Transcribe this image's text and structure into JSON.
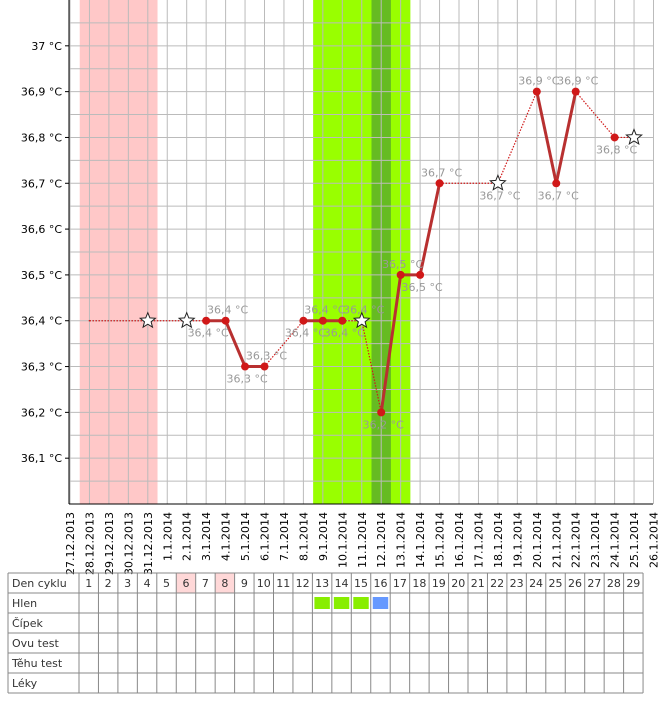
{
  "chart_data": {
    "type": "line",
    "x": [
      "27.12.2013",
      "28.12.2013",
      "29.12.2013",
      "30.12.2013",
      "31.12.2013",
      "1.1.2014",
      "2.1.2014",
      "3.1.2014",
      "4.1.2014",
      "5.1.2014",
      "6.1.2014",
      "7.1.2014",
      "8.1.2014",
      "9.1.2014",
      "10.1.2014",
      "11.1.2014",
      "12.1.2014",
      "13.1.2014",
      "14.1.2014",
      "15.1.2014",
      "16.1.2014",
      "17.1.2014",
      "18.1.2014",
      "19.1.2014",
      "20.1.2014",
      "21.1.2014",
      "22.1.2014",
      "23.1.2014",
      "24.1.2014",
      "25.1.2014",
      "26.1.2014"
    ],
    "series": [
      {
        "color": "#d01818",
        "values": [
          null,
          36.4,
          null,
          null,
          36.4,
          null,
          36.4,
          36.4,
          36.4,
          36.3,
          36.3,
          null,
          36.4,
          36.4,
          36.4,
          36.4,
          36.2,
          36.5,
          36.5,
          36.7,
          null,
          null,
          36.7,
          null,
          36.9,
          36.7,
          36.9,
          null,
          36.8,
          36.8,
          null
        ],
        "value_labels": [
          null,
          null,
          null,
          null,
          null,
          null,
          null,
          "36,4 °C",
          "36,4 °C",
          "36,3 °C",
          "36,3 °C",
          null,
          "36,4 °C",
          "36,4 °C",
          "36,4 °C",
          "36,4 °C",
          "36,2 °C",
          "36,5 °C",
          "36,5 °C",
          "36,7 °C",
          null,
          null,
          "36,7 °C",
          null,
          "36,9 °C",
          "36,7 °C",
          "36,9 °C",
          null,
          "36,8 °C",
          null,
          null
        ],
        "markers": [
          null,
          null,
          null,
          null,
          "star",
          null,
          "star",
          "dot",
          "dot",
          "dot",
          "dot",
          null,
          "dot",
          "dot",
          "dot",
          "star",
          "dot",
          "dot",
          "dot",
          "dot",
          null,
          null,
          "star",
          null,
          "dot",
          "dot",
          "dot",
          null,
          "dot",
          "star",
          null
        ]
      }
    ],
    "ylim": [
      36.0,
      37.1
    ],
    "yticks": [
      {
        "value": 36.1,
        "label": "36,1 °C"
      },
      {
        "value": 36.2,
        "label": "36,2 °C"
      },
      {
        "value": 36.3,
        "label": "36,3 °C"
      },
      {
        "value": 36.4,
        "label": "36,4 °C"
      },
      {
        "value": 36.5,
        "label": "36,5 °C"
      },
      {
        "value": 36.6,
        "label": "36,6 °C"
      },
      {
        "value": 36.7,
        "label": "36,7 °C"
      },
      {
        "value": 36.8,
        "label": "36,8 °C"
      },
      {
        "value": 36.9,
        "label": "36,9 °C"
      },
      {
        "value": 37.0,
        "label": "37 °C"
      }
    ],
    "grid": true,
    "bands": [
      {
        "start": 1,
        "end": 4,
        "color": "#ffc8c8"
      },
      {
        "start": 13,
        "end": 17,
        "color": "#99ff00"
      },
      {
        "start": 16,
        "end": 16,
        "color": "#66bb22"
      }
    ]
  },
  "cycle_table": {
    "rows": [
      {
        "label": "Den cyklu",
        "cells": [
          1,
          2,
          3,
          4,
          5,
          6,
          7,
          8,
          9,
          10,
          11,
          12,
          13,
          14,
          15,
          16,
          17,
          18,
          19,
          20,
          21,
          22,
          23,
          24,
          25,
          26,
          27,
          28,
          29
        ]
      },
      {
        "label": "Hlen"
      },
      {
        "label": "Čípek"
      },
      {
        "label": "Ovu test"
      },
      {
        "label": "Těhu test"
      },
      {
        "label": "Léky"
      }
    ],
    "highlights": [
      {
        "row": 0,
        "day": 6,
        "color": "#ffd8d8"
      },
      {
        "row": 0,
        "day": 8,
        "color": "#ffd8d8"
      }
    ],
    "marks": [
      {
        "row": 1,
        "day": 13,
        "color": "#88ee00"
      },
      {
        "row": 1,
        "day": 14,
        "color": "#88ee00"
      },
      {
        "row": 1,
        "day": 15,
        "color": "#88ee00"
      },
      {
        "row": 1,
        "day": 16,
        "color": "#6699ff"
      }
    ]
  }
}
